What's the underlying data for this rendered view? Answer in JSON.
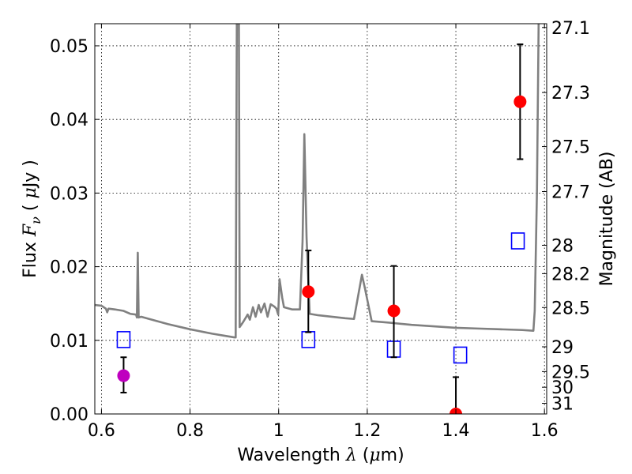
{
  "chart_data": {
    "type": "scatter",
    "xlabel_parts": {
      "prefix": "Wavelength  ",
      "symbol": "λ",
      "open": " (",
      "unit_symbol": "μ",
      "unit_rest": "m)"
    },
    "ylabel_parts": {
      "prefix": "Flux  ",
      "symbol": "F",
      "subscript": "ν",
      "open": "  ( ",
      "unit_symbol": "μ",
      "unit_rest": "Jy )"
    },
    "y2label": "Magnitude (AB)",
    "xlim": [
      0.585,
      1.605
    ],
    "ylim": [
      0.0,
      0.053
    ],
    "grid": true,
    "x_ticks": [
      {
        "value": 0.6,
        "label": "0.6"
      },
      {
        "value": 0.8,
        "label": "0.8"
      },
      {
        "value": 1.0,
        "label": "1"
      },
      {
        "value": 1.2,
        "label": "1.2"
      },
      {
        "value": 1.4,
        "label": "1.4"
      },
      {
        "value": 1.6,
        "label": "1.6"
      }
    ],
    "y_ticks": [
      {
        "value": 0.0,
        "label": "0.00"
      },
      {
        "value": 0.01,
        "label": "0.01"
      },
      {
        "value": 0.02,
        "label": "0.02"
      },
      {
        "value": 0.03,
        "label": "0.03"
      },
      {
        "value": 0.04,
        "label": "0.04"
      },
      {
        "value": 0.05,
        "label": "0.05"
      }
    ],
    "mag_ticks": [
      {
        "value": 27.1,
        "label": "27.1"
      },
      {
        "value": 27.3,
        "label": "27.3"
      },
      {
        "value": 27.5,
        "label": "27.5"
      },
      {
        "value": 27.7,
        "label": "27.7"
      },
      {
        "value": 28.0,
        "label": "28"
      },
      {
        "value": 28.2,
        "label": "28.2"
      },
      {
        "value": 28.5,
        "label": "28.5"
      },
      {
        "value": 29.0,
        "label": "29"
      },
      {
        "value": 29.5,
        "label": "29.5"
      },
      {
        "value": 30.0,
        "label": "30"
      },
      {
        "value": 31.0,
        "label": "31"
      }
    ],
    "series": [
      {
        "kind": "line",
        "color": "#808080",
        "points": [
          [
            0.585,
            0.0148
          ],
          [
            0.6,
            0.0147
          ],
          [
            0.61,
            0.0143
          ],
          [
            0.613,
            0.0138
          ],
          [
            0.616,
            0.0143
          ],
          [
            0.63,
            0.0142
          ],
          [
            0.65,
            0.014
          ],
          [
            0.665,
            0.0136
          ],
          [
            0.678,
            0.0135
          ],
          [
            0.68,
            0.0131
          ],
          [
            0.682,
            0.0219
          ],
          [
            0.684,
            0.0131
          ],
          [
            0.69,
            0.0132
          ],
          [
            0.72,
            0.0127
          ],
          [
            0.75,
            0.0122
          ],
          [
            0.8,
            0.0115
          ],
          [
            0.85,
            0.0109
          ],
          [
            0.88,
            0.0106
          ],
          [
            0.9,
            0.0104
          ],
          [
            0.903,
            0.0104
          ],
          [
            0.906,
            0.06
          ],
          [
            0.91,
            0.06
          ],
          [
            0.912,
            0.0118
          ],
          [
            0.92,
            0.0125
          ],
          [
            0.93,
            0.0135
          ],
          [
            0.935,
            0.0128
          ],
          [
            0.942,
            0.0145
          ],
          [
            0.948,
            0.0132
          ],
          [
            0.955,
            0.0148
          ],
          [
            0.96,
            0.0138
          ],
          [
            0.968,
            0.015
          ],
          [
            0.975,
            0.0132
          ],
          [
            0.982,
            0.0149
          ],
          [
            0.99,
            0.0146
          ],
          [
            0.995,
            0.0143
          ],
          [
            0.999,
            0.0135
          ],
          [
            1.002,
            0.0183
          ],
          [
            1.008,
            0.0158
          ],
          [
            1.012,
            0.0145
          ],
          [
            1.03,
            0.0142
          ],
          [
            1.048,
            0.0142
          ],
          [
            1.054,
            0.0235
          ],
          [
            1.058,
            0.038
          ],
          [
            1.063,
            0.024
          ],
          [
            1.07,
            0.0136
          ],
          [
            1.09,
            0.0134
          ],
          [
            1.12,
            0.0132
          ],
          [
            1.15,
            0.013
          ],
          [
            1.17,
            0.0129
          ],
          [
            1.188,
            0.0189
          ],
          [
            1.195,
            0.017
          ],
          [
            1.21,
            0.0126
          ],
          [
            1.25,
            0.0124
          ],
          [
            1.3,
            0.0121
          ],
          [
            1.35,
            0.0119
          ],
          [
            1.4,
            0.0117
          ],
          [
            1.45,
            0.0116
          ],
          [
            1.5,
            0.0115
          ],
          [
            1.55,
            0.0114
          ],
          [
            1.575,
            0.0113
          ],
          [
            1.578,
            0.014
          ],
          [
            1.583,
            0.03
          ],
          [
            1.588,
            0.06
          ]
        ]
      },
      {
        "kind": "open-squares",
        "color": "#0000ff",
        "points": [
          [
            0.65,
            0.0101
          ],
          [
            1.067,
            0.0101
          ],
          [
            1.26,
            0.0088
          ],
          [
            1.41,
            0.008
          ],
          [
            1.54,
            0.0235
          ]
        ]
      },
      {
        "kind": "errorbars",
        "color": "#000000",
        "points": [
          {
            "x": 0.65,
            "y": 0.0052,
            "lo": 0.0029,
            "hi": 0.0077
          },
          {
            "x": 1.067,
            "y": 0.0166,
            "lo": 0.0111,
            "hi": 0.0222
          },
          {
            "x": 1.26,
            "y": 0.014,
            "lo": 0.0077,
            "hi": 0.0201
          },
          {
            "x": 1.4,
            "y": 0.0,
            "lo": 0.0,
            "hi": 0.005
          },
          {
            "x": 1.545,
            "y": 0.0424,
            "lo": 0.0346,
            "hi": 0.0502
          }
        ]
      },
      {
        "kind": "filled-circles",
        "points": [
          {
            "x": 0.65,
            "y": 0.0052,
            "color": "#bf00bf"
          },
          {
            "x": 1.067,
            "y": 0.0166,
            "color": "#ff0000"
          },
          {
            "x": 1.26,
            "y": 0.014,
            "color": "#ff0000"
          },
          {
            "x": 1.4,
            "y": 0.0,
            "color": "#ff0000"
          },
          {
            "x": 1.545,
            "y": 0.0424,
            "color": "#ff0000"
          }
        ]
      }
    ]
  }
}
